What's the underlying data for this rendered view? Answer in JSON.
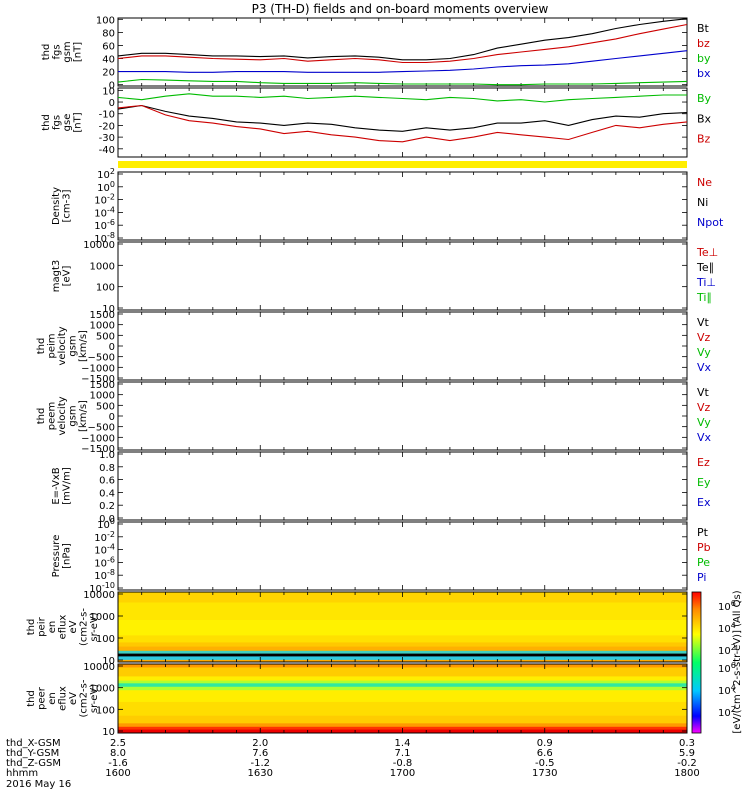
{
  "title": "P3 (TH-D) fields and on-board moments overview",
  "date_label": "2016 May 16",
  "colorbar_label": "[eV/(cm^2-s-str-eV)] (All Qs)",
  "chart_data": [
    {
      "id": "fgs_gsm",
      "type": "line",
      "ylabel": [
        "thd",
        "fgs",
        "gsm",
        "[nT]"
      ],
      "ylim": [
        -2,
        102
      ],
      "ticks": [
        0,
        20,
        40,
        60,
        80,
        100
      ],
      "legend": [
        {
          "text": "Bt",
          "color": "#000000"
        },
        {
          "text": "bz",
          "color": "#cc0000"
        },
        {
          "text": "by",
          "color": "#00bb00"
        },
        {
          "text": "bx",
          "color": "#0000cc"
        }
      ],
      "x": [
        1600,
        1605,
        1610,
        1615,
        1620,
        1625,
        1630,
        1635,
        1640,
        1645,
        1650,
        1655,
        1700,
        1705,
        1710,
        1715,
        1720,
        1725,
        1730,
        1735,
        1740,
        1745,
        1750,
        1755,
        1800
      ],
      "series": [
        {
          "color": "#000000",
          "values": [
            44,
            48,
            48,
            46,
            44,
            44,
            43,
            44,
            41,
            43,
            44,
            42,
            38,
            38,
            40,
            46,
            56,
            62,
            68,
            72,
            78,
            86,
            92,
            97,
            101
          ]
        },
        {
          "color": "#cc0000",
          "values": [
            40,
            44,
            44,
            42,
            40,
            39,
            38,
            40,
            36,
            38,
            40,
            38,
            34,
            34,
            36,
            40,
            46,
            50,
            54,
            58,
            64,
            70,
            78,
            85,
            92
          ]
        },
        {
          "color": "#00bb00",
          "values": [
            4,
            8,
            7,
            6,
            5,
            5,
            3,
            2,
            2,
            2,
            3,
            2,
            1,
            1,
            1,
            1,
            0,
            0,
            1,
            1,
            1,
            2,
            3,
            4,
            5
          ]
        },
        {
          "color": "#0000cc",
          "values": [
            20,
            20,
            20,
            19,
            19,
            20,
            20,
            20,
            19,
            19,
            19,
            19,
            20,
            21,
            22,
            24,
            27,
            29,
            30,
            32,
            36,
            40,
            44,
            48,
            52
          ]
        }
      ]
    },
    {
      "id": "fgs_gse",
      "type": "line",
      "ylabel": [
        "thd",
        "fgs",
        "gse",
        "[nT]"
      ],
      "ylim": [
        -47,
        12
      ],
      "ticks": [
        -40,
        -30,
        -20,
        -10,
        0,
        10
      ],
      "legend": [
        {
          "text": "By",
          "color": "#00bb00"
        },
        {
          "text": "Bx",
          "color": "#000000"
        },
        {
          "text": "Bz",
          "color": "#cc0000"
        }
      ],
      "x": [
        1600,
        1605,
        1610,
        1615,
        1620,
        1625,
        1630,
        1635,
        1640,
        1645,
        1650,
        1655,
        1700,
        1705,
        1710,
        1715,
        1720,
        1725,
        1730,
        1735,
        1740,
        1745,
        1750,
        1755,
        1800
      ],
      "series": [
        {
          "color": "#00bb00",
          "values": [
            4,
            2,
            5,
            7,
            5,
            5,
            4,
            5,
            3,
            4,
            5,
            4,
            3,
            2,
            4,
            3,
            1,
            2,
            0,
            2,
            3,
            4,
            5,
            6,
            6
          ]
        },
        {
          "color": "#000000",
          "values": [
            -6,
            -3,
            -8,
            -12,
            -14,
            -17,
            -18,
            -20,
            -18,
            -19,
            -22,
            -24,
            -25,
            -22,
            -24,
            -22,
            -18,
            -18,
            -16,
            -20,
            -15,
            -12,
            -13,
            -10,
            -9
          ]
        },
        {
          "color": "#cc0000",
          "values": [
            -5,
            -3,
            -11,
            -16,
            -18,
            -21,
            -23,
            -27,
            -25,
            -28,
            -30,
            -33,
            -34,
            -30,
            -33,
            -30,
            -26,
            -28,
            -30,
            -32,
            -26,
            -20,
            -22,
            -19,
            -17
          ]
        }
      ]
    },
    {
      "id": "density",
      "type": "line",
      "log": true,
      "ylabel": [
        "Density",
        "[cm-3]"
      ],
      "ticks": [
        "10^2",
        "10^0",
        "10^-2",
        "10^-4",
        "10^-6",
        "10^-8"
      ],
      "legend": [
        {
          "text": "Ne",
          "color": "#cc0000"
        },
        {
          "text": "Ni",
          "color": "#000000"
        },
        {
          "text": "Npot",
          "color": "#0000cc"
        }
      ],
      "series": []
    },
    {
      "id": "temperature",
      "type": "line",
      "log": true,
      "ylabel": [
        "magt3",
        "[eV]"
      ],
      "ticks": [
        "10000",
        "1000",
        "100",
        "10"
      ],
      "legend": [
        {
          "text": "Te⊥",
          "color": "#cc0000"
        },
        {
          "text": "Te∥",
          "color": "#000000"
        },
        {
          "text": "Ti⊥",
          "color": "#0000cc"
        },
        {
          "text": "Ti∥",
          "color": "#00bb00"
        }
      ],
      "series": []
    },
    {
      "id": "peim_velocity",
      "type": "line",
      "ylabel": [
        "thd",
        "peim",
        "velocity",
        "gsm",
        "[km/s]"
      ],
      "ticks": [
        "1500",
        "1000",
        "500",
        "0",
        "−500",
        "−1000",
        "−1500"
      ],
      "legend": [
        {
          "text": "Vt",
          "color": "#000000"
        },
        {
          "text": "Vz",
          "color": "#cc0000"
        },
        {
          "text": "Vy",
          "color": "#00bb00"
        },
        {
          "text": "Vx",
          "color": "#0000cc"
        }
      ],
      "series": []
    },
    {
      "id": "peem_velocity",
      "type": "line",
      "ylabel": [
        "thd",
        "peem",
        "velocity",
        "gsm",
        "[km/s]"
      ],
      "ticks": [
        "1500",
        "1000",
        "500",
        "0",
        "−500",
        "−1000",
        "−1500"
      ],
      "legend": [
        {
          "text": "Vt",
          "color": "#000000"
        },
        {
          "text": "Vz",
          "color": "#cc0000"
        },
        {
          "text": "Vy",
          "color": "#00bb00"
        },
        {
          "text": "Vx",
          "color": "#0000cc"
        }
      ],
      "series": []
    },
    {
      "id": "efield",
      "type": "line",
      "ylabel": [
        "E=-VxB",
        "[mV/m]"
      ],
      "ticks": [
        "1.0",
        "0.8",
        "0.6",
        "0.4",
        "0.2",
        "0.0"
      ],
      "legend": [
        {
          "text": "Ez",
          "color": "#cc0000"
        },
        {
          "text": "Ey",
          "color": "#00bb00"
        },
        {
          "text": "Ex",
          "color": "#0000cc"
        }
      ],
      "series": []
    },
    {
      "id": "pressure",
      "type": "line",
      "log": true,
      "ylabel": [
        "Pressure",
        "[nPa]"
      ],
      "ticks": [
        "10^0",
        "10^-2",
        "10^-4",
        "10^-6",
        "10^-8",
        "10^-10"
      ],
      "legend": [
        {
          "text": "Pt",
          "color": "#000000"
        },
        {
          "text": "Pb",
          "color": "#cc0000"
        },
        {
          "text": "Pe",
          "color": "#00bb00"
        },
        {
          "text": "Pi",
          "color": "#0000cc"
        }
      ],
      "series": []
    },
    {
      "id": "peir_spectrogram",
      "type": "heatmap",
      "log": true,
      "ylabel": [
        "thd",
        "peir",
        "en",
        "eflux",
        "eV",
        "(cm2-s-",
        "sr-eV)"
      ],
      "ticks": [
        "10000",
        "1000",
        "100",
        "10"
      ],
      "colorbar_ticks": [
        "10^6",
        "10^4",
        "10^2"
      ]
    },
    {
      "id": "peer_spectrogram",
      "type": "heatmap",
      "log": true,
      "ylabel": [
        "thd",
        "peer",
        "en",
        "eflux",
        "eV",
        "(cm2-s-",
        "sr-eV)"
      ],
      "ticks": [
        "10000",
        "1000",
        "100",
        "10"
      ],
      "colorbar_ticks": [
        "10^6",
        "10^4",
        "10^2"
      ]
    }
  ],
  "orbit_table": {
    "row_labels": [
      "thd_X-GSM",
      "thd_Y-GSM",
      "thd_Z-GSM",
      "hhmm"
    ],
    "columns": [
      [
        "2.5",
        "8.0",
        "-1.6",
        "1600"
      ],
      [
        "2.0",
        "7.6",
        "-1.2",
        "1630"
      ],
      [
        "1.4",
        "7.1",
        "-0.8",
        "1700"
      ],
      [
        "0.9",
        "6.6",
        "-0.5",
        "1730"
      ],
      [
        "0.3",
        "5.9",
        "-0.2",
        "1800"
      ]
    ]
  }
}
